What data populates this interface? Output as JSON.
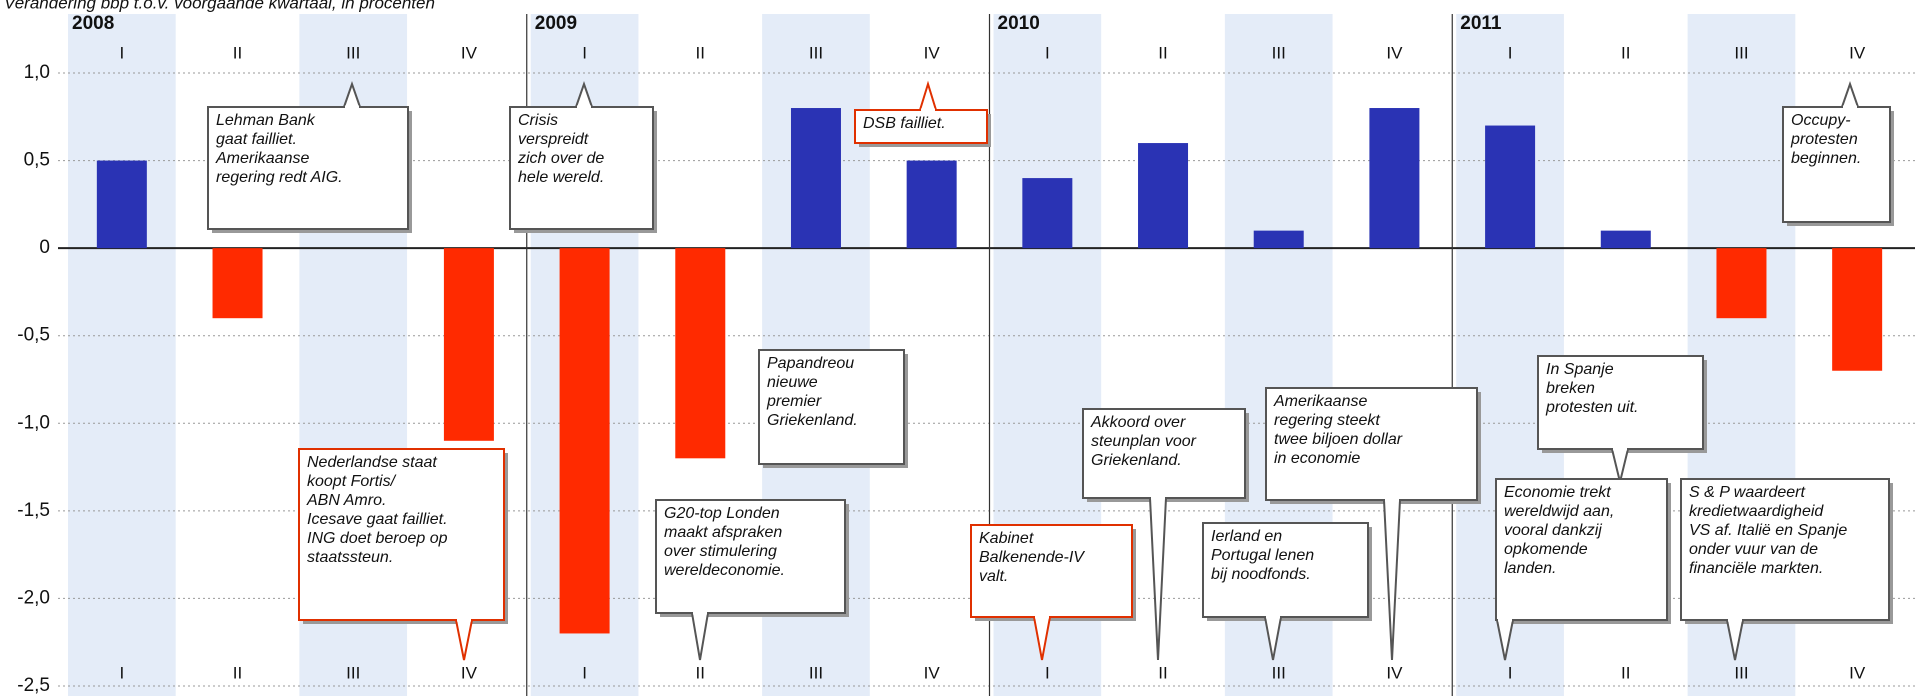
{
  "chart_data": {
    "type": "bar",
    "subtitle": "Verandering bbp t.o.v. voorgaande kwartaal, in procenten",
    "years": [
      "2008",
      "2009",
      "2010",
      "2011"
    ],
    "categories": [
      "I",
      "II",
      "III",
      "IV",
      "I",
      "II",
      "III",
      "IV",
      "I",
      "II",
      "III",
      "IV",
      "I",
      "II",
      "III",
      "IV"
    ],
    "values": [
      0.5,
      -0.4,
      0,
      -1.1,
      -2.2,
      -1.2,
      0.8,
      0.5,
      0.4,
      0.6,
      0.1,
      0.8,
      0.7,
      0.1,
      -0.4,
      -0.7
    ],
    "positive_color": "#2a33b4",
    "negative_color": "#ff2a00",
    "ylim": [
      -2.5,
      1.0
    ],
    "yticks": [
      {
        "value": 1.0,
        "label": "1,0"
      },
      {
        "value": 0.5,
        "label": "0,5"
      },
      0,
      {
        "value": -0.5,
        "label": "-0,5"
      },
      {
        "value": -1.0,
        "label": "-1,0"
      },
      {
        "value": -1.5,
        "label": "-1,5"
      },
      {
        "value": -2.0,
        "label": "-2,0"
      },
      {
        "value": -2.5,
        "label": "-2,5"
      }
    ],
    "grid": true,
    "annotations": [
      {
        "lines": [
          "Lehman Bank",
          "gaat failliet.",
          "Amerikaanse",
          "regering redt AIG."
        ],
        "border_color": "#555555"
      },
      {
        "lines": [
          "Crisis",
          "verspreidt",
          "zich over de",
          "hele wereld."
        ],
        "border_color": "#555555"
      },
      {
        "lines": [
          "DSB failliet."
        ],
        "border_color": "#e03000"
      },
      {
        "lines": [
          "Occupy-",
          "protesten",
          "beginnen."
        ],
        "border_color": "#555555"
      },
      {
        "lines": [
          "Nederlandse staat",
          "koopt Fortis/",
          "ABN Amro.",
          "Icesave gaat failliet.",
          "ING doet beroep op",
          "staatssteun."
        ],
        "border_color": "#e03000"
      },
      {
        "lines": [
          "Papandreou",
          "nieuwe",
          "premier",
          "Griekenland."
        ],
        "border_color": "#555555"
      },
      {
        "lines": [
          "G20-top Londen",
          "maakt afspraken",
          "over stimulering",
          "wereldeconomie."
        ],
        "border_color": "#555555"
      },
      {
        "lines": [
          "Kabinet",
          "Balkenende-IV",
          "valt."
        ],
        "border_color": "#e03000"
      },
      {
        "lines": [
          "Akkoord over",
          "steunplan voor",
          "Griekenland."
        ],
        "border_color": "#555555"
      },
      {
        "lines": [
          "Amerikaanse",
          "regering steekt",
          "twee biljoen dollar",
          "in economie"
        ],
        "border_color": "#555555"
      },
      {
        "lines": [
          "Ierland en",
          "Portugal lenen",
          "bij noodfonds."
        ],
        "border_color": "#555555"
      },
      {
        "lines": [
          "In Spanje",
          "breken",
          "protesten uit."
        ],
        "border_color": "#555555"
      },
      {
        "lines": [
          "Economie trekt",
          "wereldwijd aan,",
          "vooral dankzij",
          "opkomende",
          "landen."
        ],
        "border_color": "#555555"
      },
      {
        "lines": [
          "S & P waardeert",
          "kredietwaardigheid",
          "VS af. Italië en Spanje",
          "onder vuur van de",
          "financiële markten."
        ],
        "border_color": "#555555"
      }
    ]
  }
}
